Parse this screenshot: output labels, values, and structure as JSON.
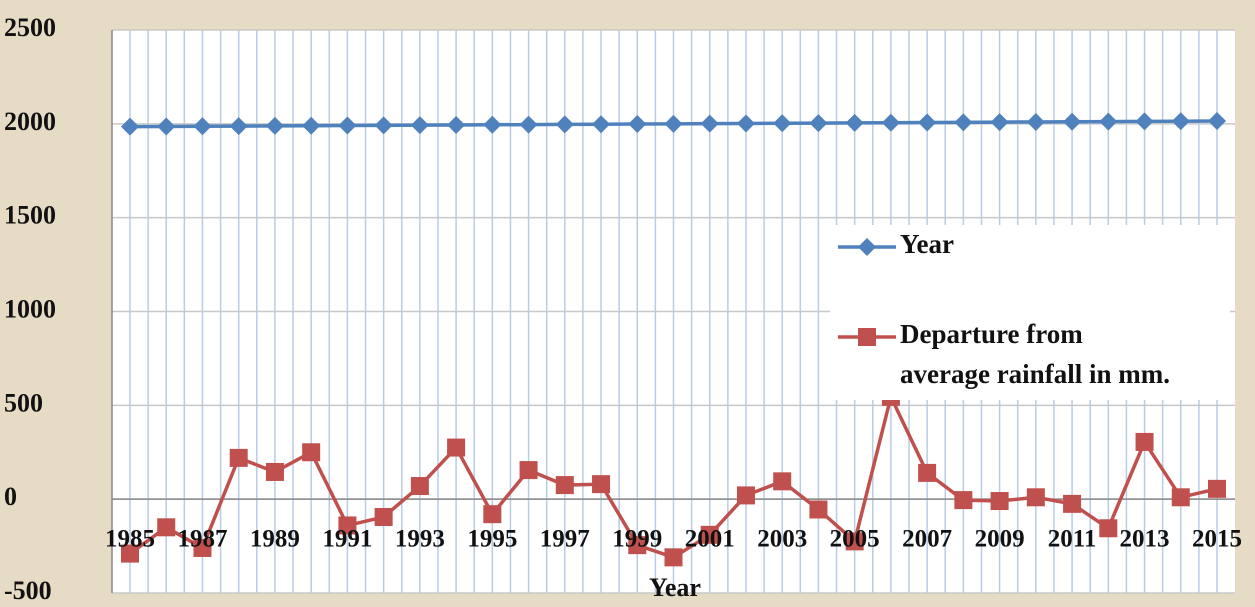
{
  "chart_data": {
    "type": "line",
    "x_label": "Year",
    "categories": [
      "1985",
      null,
      "1987",
      null,
      "1989",
      null,
      "1991",
      null,
      "1993",
      null,
      "1995",
      null,
      "1997",
      null,
      "1999",
      null,
      "2001",
      null,
      "2003",
      null,
      "2005",
      null,
      "2007",
      null,
      "2009",
      null,
      "2011",
      null,
      "2013",
      null,
      "2015"
    ],
    "series": [
      {
        "name": "Year",
        "color": "#4f81bd",
        "marker": "diamond",
        "values": [
          1985,
          1986,
          1987,
          1988,
          1989,
          1990,
          1991,
          1992,
          1993,
          1994,
          1995,
          1996,
          1997,
          1998,
          1999,
          2000,
          2001,
          2002,
          2003,
          2004,
          2005,
          2006,
          2007,
          2008,
          2009,
          2010,
          2011,
          2012,
          2013,
          2014,
          2015
        ]
      },
      {
        "name": "Departure from average rainfall in mm.",
        "color": "#c0504d",
        "marker": "square",
        "values": [
          -290,
          -150,
          -260,
          220,
          145,
          250,
          -140,
          -95,
          70,
          275,
          -80,
          155,
          75,
          80,
          -245,
          -310,
          -190,
          20,
          95,
          -55,
          -225,
          545,
          140,
          -5,
          -10,
          10,
          -25,
          -155,
          305,
          10,
          55
        ]
      }
    ],
    "ylim": [
      -500,
      2500
    ],
    "yticks": [
      -500,
      0,
      500,
      1000,
      1500,
      2000,
      2500
    ],
    "grid": true,
    "legend": "right"
  }
}
